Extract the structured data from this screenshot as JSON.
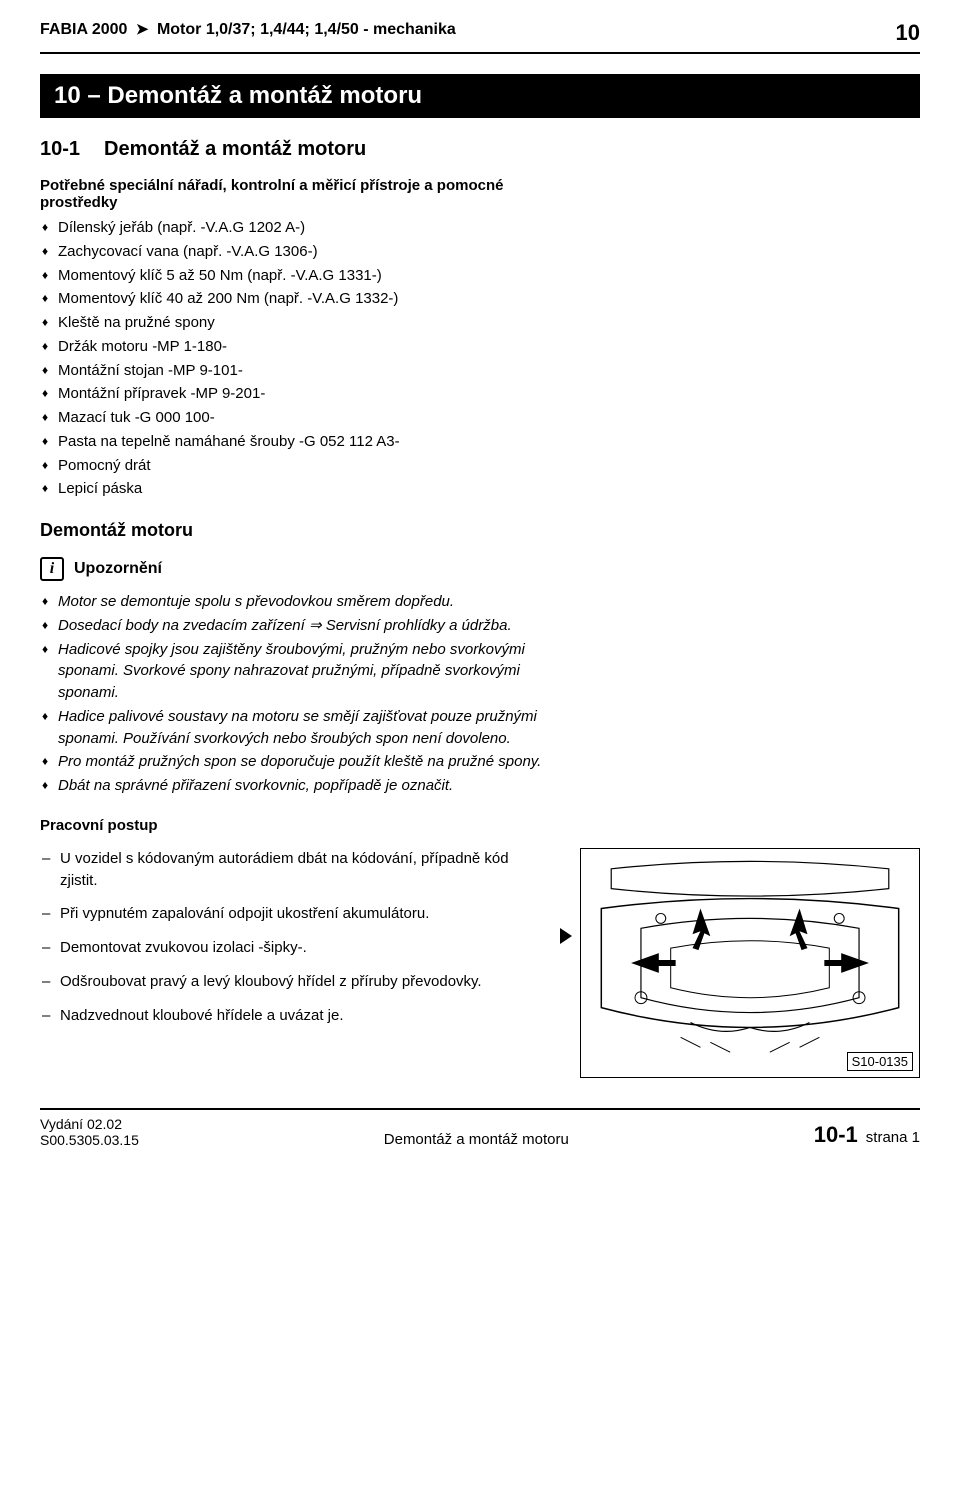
{
  "header": {
    "model": "FABIA 2000",
    "engine": "Motor 1,0/37; 1,4/44; 1,4/50 - mechanika",
    "pagenum": "10"
  },
  "chapter_bar": "10 – Demontáž a montáž motoru",
  "section": {
    "num": "10-1",
    "name": "Demontáž a montáž motoru"
  },
  "tools_title": "Potřebné speciální nářadí, kontrolní a měřicí přístroje a pomocné prostředky",
  "tools": [
    "Dílenský jeřáb (např. -V.A.G 1202 A-)",
    "Zachycovací vana (např. -V.A.G 1306-)",
    "Momentový klíč 5 až 50 Nm (např. -V.A.G 1331-)",
    "Momentový klíč 40 až 200 Nm (např. -V.A.G 1332-)",
    "Kleště na pružné spony",
    "Držák motoru -MP 1-180-",
    "Montážní stojan -MP 9-101-",
    "Montážní přípravek -MP 9-201-",
    "Mazací tuk -G 000 100-",
    "Pasta na tepelně namáhané šrouby -G 052 112 A3-",
    "Pomocný drát",
    "Lepicí páska"
  ],
  "removal_title": "Demontáž motoru",
  "note_label": "Upozornění",
  "notes": [
    "Motor se demontuje spolu s převodovkou směrem dopředu.",
    "Dosedací body na zvedacím zařízení ⇒ Servisní prohlídky a údržba.",
    "Hadicové spojky jsou zajištěny šroubovými, pružným nebo svorkovými sponami. Svorkové spony nahrazovat pružnými, případně svorkovými sponami.",
    "Hadice palivové soustavy na motoru se smějí zajišťovat pouze pružnými sponami. Používání svorkových nebo šroubých spon není dovoleno.",
    "Pro montáž pružných spon se doporučuje použít kleště na pružné spony.",
    "Dbát na správné přiřazení svorkovnic, popřípadě je označit."
  ],
  "procedure_title": "Pracovní postup",
  "steps": [
    "U vozidel s kódovaným autorádiem dbát na kódování, případně kód zjistit.",
    "Při vypnutém zapalování odpojit ukostření akumulátoru.",
    "Demontovat zvukovou izolaci -šipky-.",
    "Odšroubovat pravý a levý kloubový hřídel z příruby převodovky.",
    "Nadzvednout kloubové hřídele a uvázat je."
  ],
  "figure": {
    "label": "S10-0135"
  },
  "footer": {
    "edition": "Vydání 02.02",
    "code": "S00.5305.03.15",
    "center": "Demontáž a montáž motoru",
    "chap": "10-1",
    "page": "strana 1"
  }
}
